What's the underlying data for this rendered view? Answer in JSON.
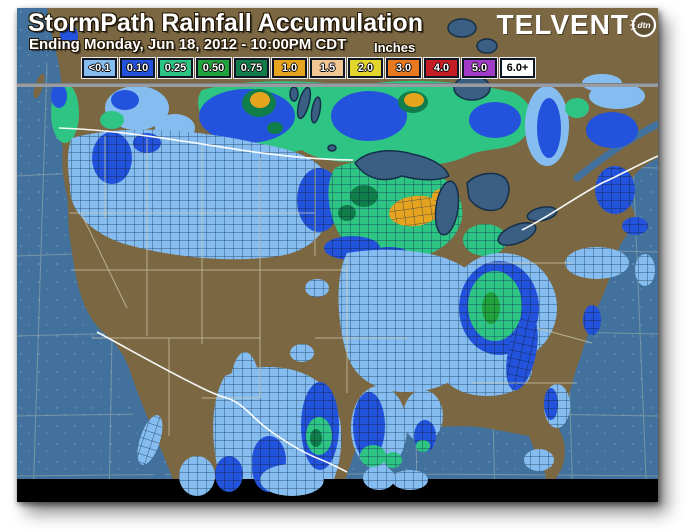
{
  "header": {
    "title": "StormPath Rainfall Accumulation",
    "subtitle": "Ending Monday, Jun 18, 2012 - 10:00PM CDT",
    "units_label": "Inches"
  },
  "legend": {
    "items": [
      {
        "label": "<0.1",
        "color": "#86BDF0",
        "text": "#FFFFFF"
      },
      {
        "label": "0.10",
        "color": "#2353DC",
        "text": "#FFFFFF"
      },
      {
        "label": "0.25",
        "color": "#2EC584",
        "text": "#FFFFFF"
      },
      {
        "label": "0.50",
        "color": "#21A33C",
        "text": "#FFFFFF"
      },
      {
        "label": "0.75",
        "color": "#0F7E4B",
        "text": "#FFFFFF"
      },
      {
        "label": "1.0",
        "color": "#E6A41E",
        "text": "#FFFFFF"
      },
      {
        "label": "1.5",
        "color": "#F4C693",
        "text": "#FFFFFF"
      },
      {
        "label": "2.0",
        "color": "#E2D52B",
        "text": "#FFFFFF"
      },
      {
        "label": "3.0",
        "color": "#E8791E",
        "text": "#FFFFFF"
      },
      {
        "label": "4.0",
        "color": "#C41E24",
        "text": "#FFFFFF"
      },
      {
        "label": "5.0",
        "color": "#A23BC8",
        "text": "#FFFFFF"
      },
      {
        "label": "6.0+",
        "color": "#FFFFFF",
        "text": "#000000"
      }
    ]
  },
  "logo": {
    "brand": "TELVENT",
    "badge": "dtn"
  },
  "map": {
    "palette": {
      "ocean": "#41719C",
      "land": "#7B6843",
      "lakes": "#3A5F82",
      "county_line": "#1C3C5E",
      "state_line": "#CDC9AE",
      "national_border": "#FFFFFF",
      "graticule": "#A9BCAD",
      "header_separator": "#969CA2",
      "bottom_band": "#000000"
    }
  }
}
